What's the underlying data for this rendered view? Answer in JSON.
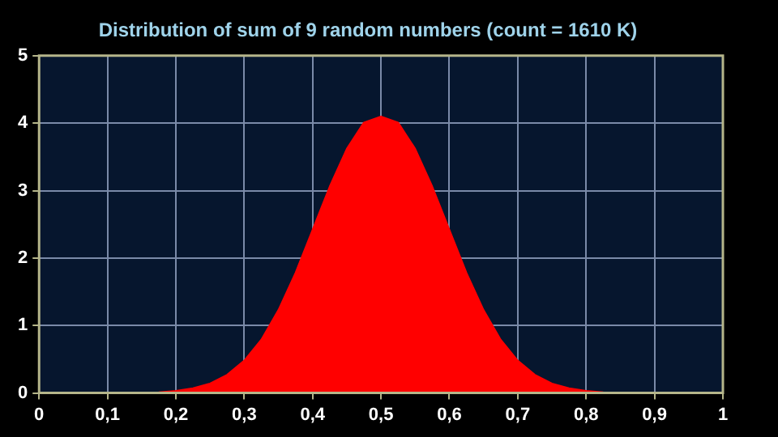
{
  "chart_data": {
    "type": "area",
    "title": "Distribution of sum of 9 random numbers (count = 1610 K)",
    "x": [
      0.15,
      0.175,
      0.2,
      0.225,
      0.25,
      0.275,
      0.3,
      0.325,
      0.35,
      0.375,
      0.4,
      0.425,
      0.45,
      0.475,
      0.5,
      0.525,
      0.55,
      0.575,
      0.6,
      0.625,
      0.65,
      0.675,
      0.7,
      0.725,
      0.75,
      0.775,
      0.8,
      0.825,
      0.85
    ],
    "series": [
      {
        "color": "#ff0000",
        "values": [
          0,
          0.01,
          0.03,
          0.07,
          0.14,
          0.27,
          0.48,
          0.79,
          1.23,
          1.78,
          2.42,
          3.06,
          3.62,
          4.01,
          4.1,
          4.01,
          3.62,
          3.06,
          2.42,
          1.78,
          1.23,
          0.79,
          0.48,
          0.27,
          0.14,
          0.07,
          0.03,
          0.01,
          0
        ]
      }
    ],
    "xlim": [
      0,
      1
    ],
    "xticks": [
      0,
      {
        "value": 0.1,
        "label": "0,1"
      },
      {
        "value": 0.2,
        "label": "0,2"
      },
      {
        "value": 0.3,
        "label": "0,3"
      },
      {
        "value": 0.4,
        "label": "0,4"
      },
      {
        "value": 0.5,
        "label": "0,5"
      },
      {
        "value": 0.6,
        "label": "0,6"
      },
      {
        "value": 0.7,
        "label": "0,7"
      },
      {
        "value": 0.8,
        "label": "0,8"
      },
      {
        "value": 0.9,
        "label": "0,9"
      },
      1
    ],
    "ylim": [
      0,
      5
    ],
    "yticks": [
      0,
      1,
      2,
      3,
      4,
      5
    ],
    "grid": true
  }
}
